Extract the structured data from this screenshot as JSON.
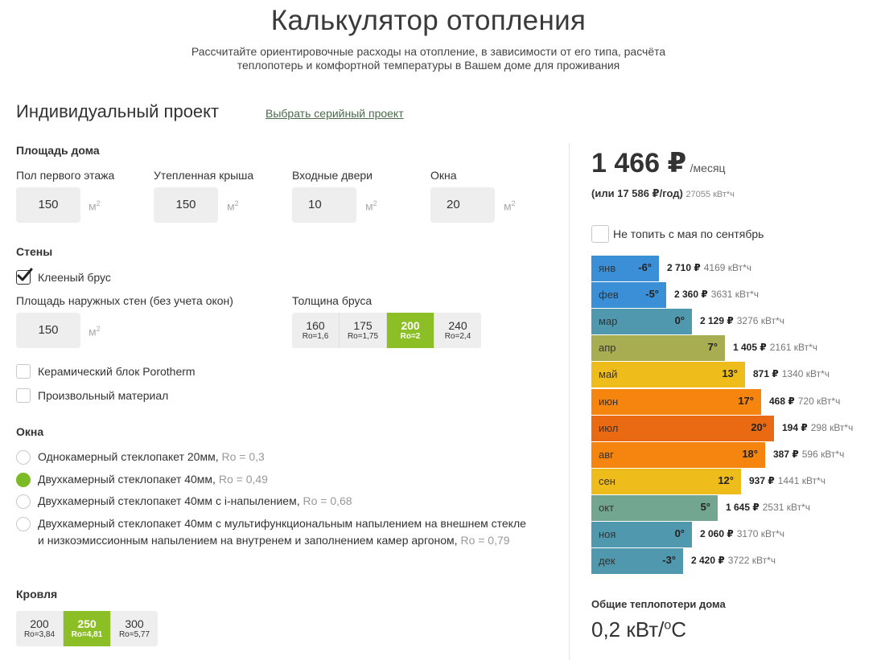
{
  "header": {
    "title": "Калькулятор отопления",
    "subtitle_line1": "Рассчитайте ориентировочные расходы на отопление, в зависимости от его типа, расчёта",
    "subtitle_line2": "теплопотерь и комфортной температуры в Вашем доме для проживания"
  },
  "project": {
    "title": "Индивидуальный проект",
    "serial_link": "Выбрать серийный проект"
  },
  "area": {
    "label": "Площадь дома",
    "unit": "м",
    "unit_power": "2",
    "fields": [
      {
        "label": "Пол первого этажа",
        "value": "150"
      },
      {
        "label": "Утепленная крыша",
        "value": "150"
      },
      {
        "label": "Входные двери",
        "value": "10"
      },
      {
        "label": "Окна",
        "value": "20"
      }
    ]
  },
  "walls": {
    "label": "Стены",
    "glued_beam": {
      "label": "Клееный брус",
      "checked": true
    },
    "outer_area_label": "Площадь наружных стен (без учета окон)",
    "outer_area_value": "150",
    "thickness_label": "Толщина бруса",
    "thickness_options": [
      {
        "value": "160",
        "r": "Ro=1,6",
        "active": false
      },
      {
        "value": "175",
        "r": "Ro=1,75",
        "active": false
      },
      {
        "value": "200",
        "r": "Ro=2",
        "active": true
      },
      {
        "value": "240",
        "r": "Ro=2,4",
        "active": false
      }
    ],
    "ceramic": {
      "label": "Керамический блок Porotherm",
      "checked": false
    },
    "custom": {
      "label": "Произвольный материал",
      "checked": false
    }
  },
  "windows": {
    "label": "Окна",
    "options": [
      {
        "text": "Однокамерный стеклопакет 20мм,",
        "r": "Ro = 0,3",
        "checked": false
      },
      {
        "text": "Двухкамерный стеклопакет 40мм,",
        "r": "Ro = 0,49",
        "checked": true
      },
      {
        "text": "Двухкамерный стеклопакет 40мм с i-напылением,",
        "r": "Ro = 0,68",
        "checked": false
      },
      {
        "text": "Двухкамерный стеклопакет 40мм с мультифункциональным напылением на внешнем стекле и низкоэмиссионным напылением на внутренем и заполнением камер аргоном,",
        "r": "Ro = 0,79",
        "checked": false
      }
    ]
  },
  "roof": {
    "label": "Кровля",
    "options": [
      {
        "value": "200",
        "r": "Ro=3,84",
        "active": false
      },
      {
        "value": "250",
        "r": "Ro=4,81",
        "active": true
      },
      {
        "value": "300",
        "r": "Ro=5,77",
        "active": false
      }
    ]
  },
  "summary": {
    "price": "1 466 ₽",
    "per_month": "/месяц",
    "yearly": "(или 17 586 ₽/год)",
    "yearly_kwh": "27055 кВт*ч",
    "no_heat_summer": {
      "label": "Не топить с мая по сентябрь",
      "checked": false
    },
    "heat_loss_label": "Общие теплопотери дома",
    "heat_loss_value": "0,2 кВт/",
    "heat_loss_unit_sup": "o",
    "heat_loss_unit": "C"
  },
  "months": [
    {
      "name": "янв",
      "temp": "-6°",
      "cost": "2 710 ₽",
      "kwh": "4169 кВт*ч",
      "color": "#3b8fd6",
      "fill": 0.37
    },
    {
      "name": "фев",
      "temp": "-5°",
      "cost": "2 360 ₽",
      "kwh": "3631 кВт*ч",
      "color": "#3b8fd6",
      "fill": 0.41
    },
    {
      "name": "мар",
      "temp": "0°",
      "cost": "2 129 ₽",
      "kwh": "3276 кВт*ч",
      "color": "#4f98ad",
      "fill": 0.55
    },
    {
      "name": "апр",
      "temp": "7°",
      "cost": "1 405 ₽",
      "kwh": "2161 кВт*ч",
      "color": "#a9ad52",
      "fill": 0.73
    },
    {
      "name": "май",
      "temp": "13°",
      "cost": "871 ₽",
      "kwh": "1340 кВт*ч",
      "color": "#eebd1b",
      "fill": 0.84
    },
    {
      "name": "июн",
      "temp": "17°",
      "cost": "468 ₽",
      "kwh": "720 кВт*ч",
      "color": "#f5850f",
      "fill": 0.93
    },
    {
      "name": "июл",
      "temp": "20°",
      "cost": "194 ₽",
      "kwh": "298 кВт*ч",
      "color": "#ea6a14",
      "fill": 1.0
    },
    {
      "name": "авг",
      "temp": "18°",
      "cost": "387 ₽",
      "kwh": "596 кВт*ч",
      "color": "#f5850f",
      "fill": 0.95
    },
    {
      "name": "сен",
      "temp": "12°",
      "cost": "937 ₽",
      "kwh": "1441 кВт*ч",
      "color": "#eebd1b",
      "fill": 0.82
    },
    {
      "name": "окт",
      "temp": "5°",
      "cost": "1 645 ₽",
      "kwh": "2531 кВт*ч",
      "color": "#72a690",
      "fill": 0.69
    },
    {
      "name": "ноя",
      "temp": "0°",
      "cost": "2 060 ₽",
      "kwh": "3170 кВт*ч",
      "color": "#4f98ad",
      "fill": 0.55
    },
    {
      "name": "дек",
      "temp": "-3°",
      "cost": "2 420 ₽",
      "kwh": "3722 кВт*ч",
      "color": "#4f98ad",
      "fill": 0.5
    }
  ]
}
